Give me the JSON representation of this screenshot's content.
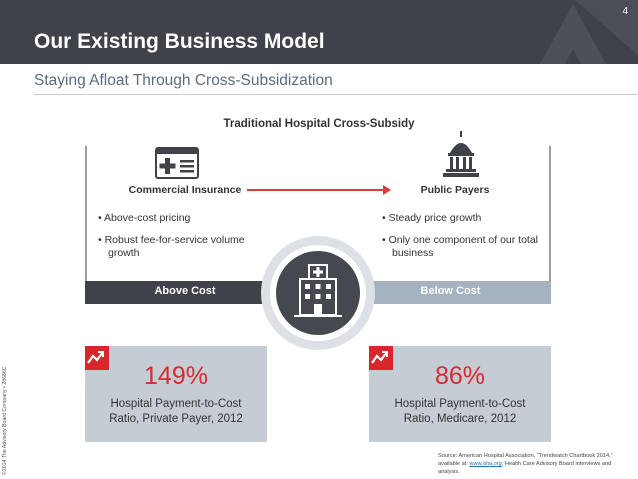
{
  "header": {
    "page_number": "4",
    "title": "Our Existing Business Model",
    "subtitle": "Staying Afloat Through Cross-Subsidization"
  },
  "copyright": "©2014 The Advisory Board Company • 28686C",
  "diagram": {
    "title": "Traditional Hospital Cross-Subsidy",
    "left": {
      "heading": "Commercial Insurance",
      "icon": "insurance-card-icon",
      "bullets": [
        "Above-cost pricing",
        "Robust fee-for-service volume growth"
      ],
      "bar_label": "Above Cost"
    },
    "right": {
      "heading": "Public Payers",
      "icon": "capitol-building-icon",
      "bullets": [
        "Steady price growth",
        "Only one component of our total business"
      ],
      "bar_label": "Below Cost"
    },
    "center_icon": "hospital-icon"
  },
  "stats": [
    {
      "value": "149%",
      "line1": "Hospital Payment-to-Cost",
      "line2": "Ratio, Private Payer, 2012"
    },
    {
      "value": "86%",
      "line1": "Hospital Payment-to-Cost",
      "line2": "Ratio, Medicare, 2012"
    }
  ],
  "source": {
    "before": "Source: American Hospital Association, “Trendwatch Chartbook 2014,” available at: ",
    "link": "www.aha.org",
    "after": "; Health Care Advisory Board interviews and analysis."
  },
  "colors": {
    "header_bg": "#3f4249",
    "accent_red": "#d62b30",
    "stat_bg": "#c5ccd4",
    "below_bar": "#a5b2c0"
  }
}
